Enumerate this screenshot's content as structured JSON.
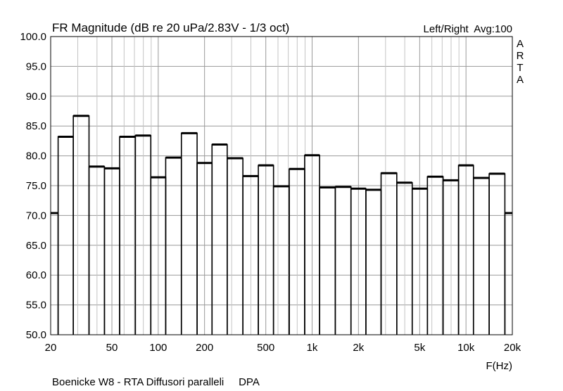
{
  "chart_data": {
    "type": "bar",
    "title": "FR Magnitude (dB re 20 uPa/2.83V - 1/3 oct)",
    "legend_info": "Left/Right  Avg:100",
    "side_label": [
      "A",
      "R",
      "T",
      "A"
    ],
    "xlabel": "F(Hz)",
    "footer": "Boenicke W8 - RTA Diffusori paralleli     DPA",
    "x_scale": "log",
    "xlim": [
      20,
      20000
    ],
    "ylim": [
      50,
      100
    ],
    "grid": true,
    "y_ticks": [
      "100.0",
      "95.0",
      "90.0",
      "85.0",
      "80.0",
      "75.0",
      "70.0",
      "65.0",
      "60.0",
      "55.0",
      "50.0"
    ],
    "x_ticks": [
      {
        "v": 20,
        "label": "20"
      },
      {
        "v": 50,
        "label": "50"
      },
      {
        "v": 100,
        "label": "100"
      },
      {
        "v": 200,
        "label": "200"
      },
      {
        "v": 500,
        "label": "500"
      },
      {
        "v": 1000,
        "label": "1k"
      },
      {
        "v": 2000,
        "label": "2k"
      },
      {
        "v": 5000,
        "label": "5k"
      },
      {
        "v": 10000,
        "label": "10k"
      },
      {
        "v": 20000,
        "label": "20k"
      }
    ],
    "categories": [
      20,
      25,
      31.5,
      40,
      50,
      63,
      80,
      100,
      125,
      160,
      200,
      250,
      315,
      400,
      500,
      630,
      800,
      1000,
      1250,
      1600,
      2000,
      2500,
      3150,
      4000,
      5000,
      6300,
      8000,
      10000,
      12500,
      16000,
      20000
    ],
    "values": [
      70.4,
      83.2,
      86.7,
      78.2,
      77.9,
      83.2,
      83.4,
      76.4,
      79.7,
      83.8,
      78.8,
      81.9,
      79.6,
      76.6,
      78.4,
      74.9,
      77.8,
      80.1,
      74.7,
      74.8,
      74.5,
      74.3,
      77.1,
      75.5,
      74.5,
      76.5,
      75.9,
      78.4,
      76.3,
      77.0,
      70.4
    ]
  }
}
